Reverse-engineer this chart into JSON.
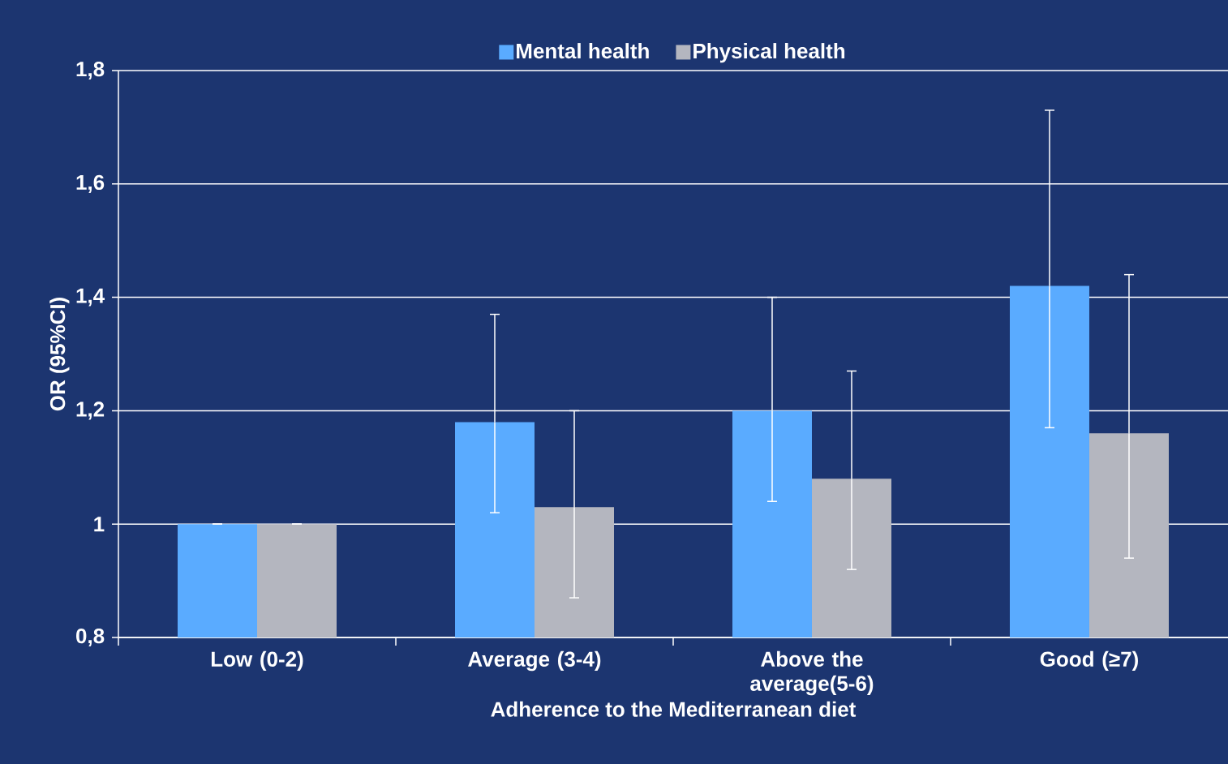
{
  "chart_data": {
    "type": "bar",
    "xlabel": "Adherence to the Mediterranean diet",
    "ylabel": "OR (95%CI)",
    "categories": [
      "Low (0-2)",
      "Average (3-4)",
      "Above the average(5-6)",
      "Good (≥7)"
    ],
    "series": [
      {
        "name": "Mental health",
        "color": "#5aabff",
        "values": [
          1.0,
          1.18,
          1.2,
          1.42
        ],
        "errors": [
          [
            1.0,
            1.0
          ],
          [
            1.02,
            1.37
          ],
          [
            1.04,
            1.4
          ],
          [
            1.17,
            1.73
          ]
        ]
      },
      {
        "name": "Physical health",
        "color": "#b4b6bf",
        "values": [
          1.0,
          1.03,
          1.08,
          1.16
        ],
        "errors": [
          [
            1.0,
            1.0
          ],
          [
            0.87,
            1.2
          ],
          [
            0.92,
            1.27
          ],
          [
            0.94,
            1.44
          ]
        ]
      }
    ],
    "ylim": [
      0.8,
      1.8
    ],
    "yticks": [
      {
        "value": 0.8,
        "label": "0,8"
      },
      1,
      {
        "value": 1.2,
        "label": "1,2"
      },
      {
        "value": 1.4,
        "label": "1,4"
      },
      {
        "value": 1.6,
        "label": "1,6"
      },
      {
        "value": 1.8,
        "label": "1,8"
      }
    ],
    "grid": "y",
    "legend": "top"
  }
}
